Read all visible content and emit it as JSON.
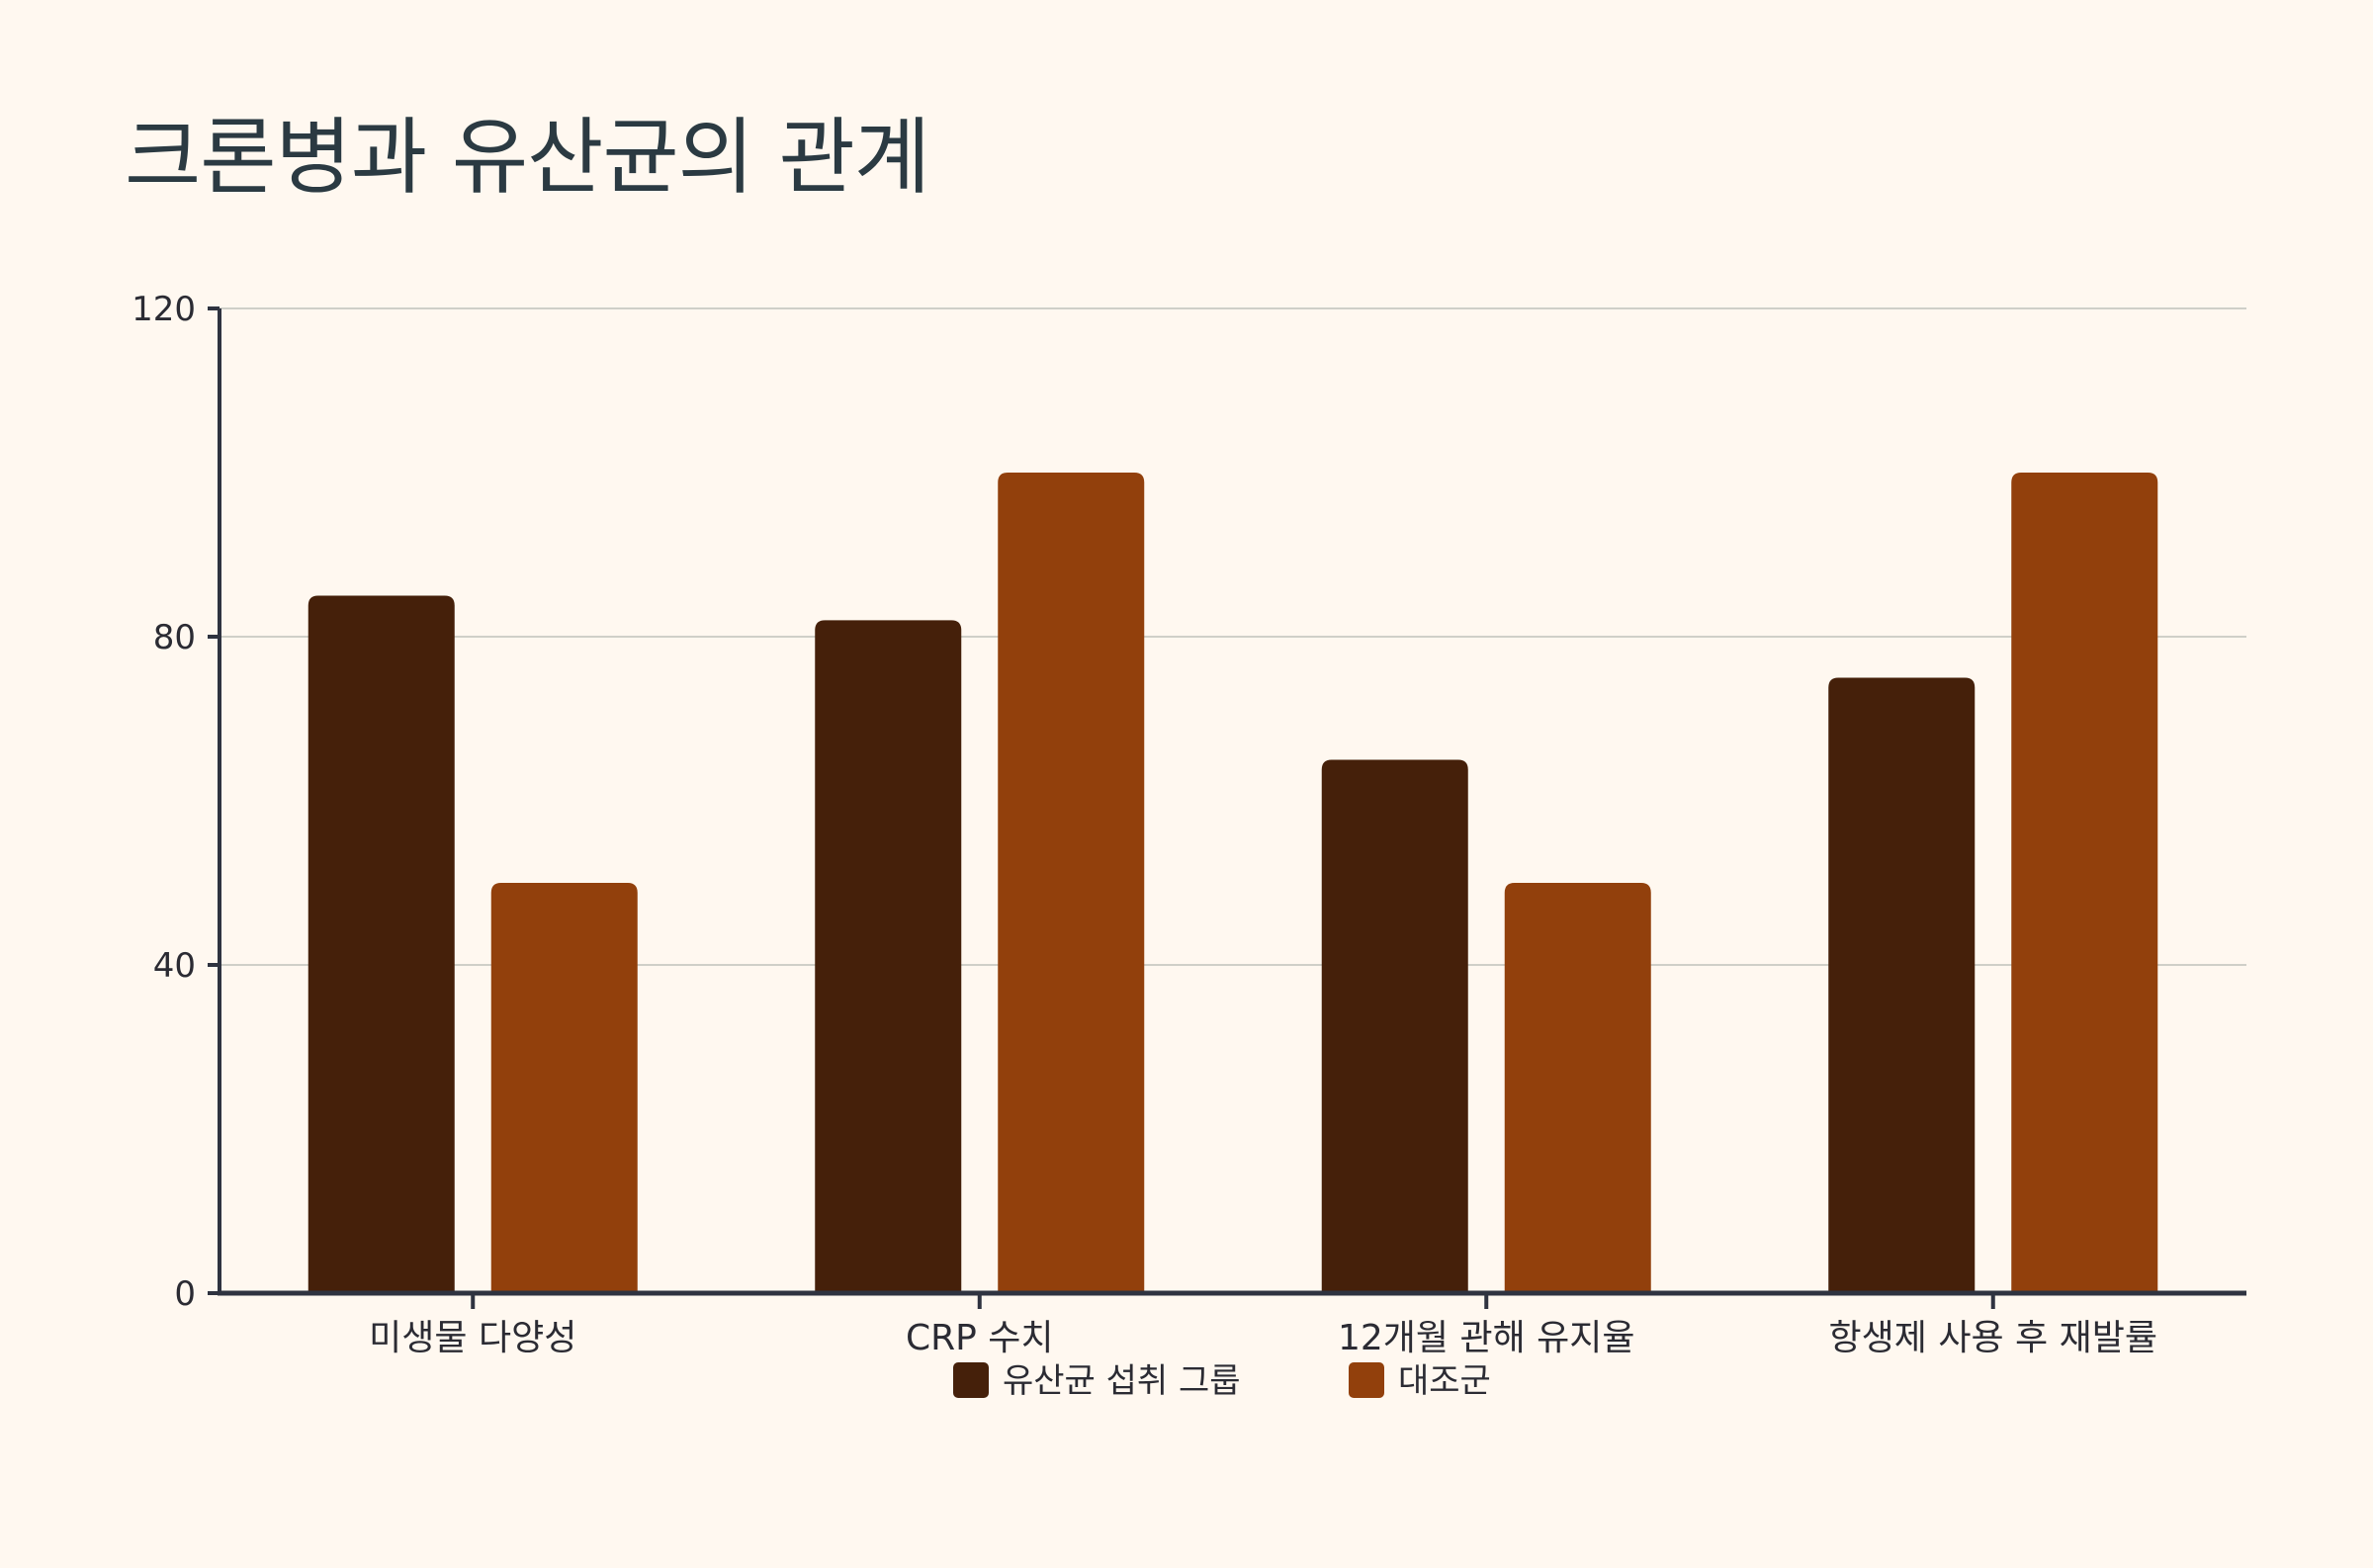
{
  "chart_data": {
    "type": "bar",
    "title": "크론병과 유산균의 관계",
    "xlabel": "",
    "ylabel": "",
    "ylim": [
      0,
      120
    ],
    "yticks": [
      0,
      40,
      80,
      120
    ],
    "grid": true,
    "legend_position": "bottom-center",
    "categories": [
      "미생물 다양성",
      "CRP 수치",
      "12개월 관해 유지율",
      "항생제 사용 후 재발률"
    ],
    "series": [
      {
        "name": "유산균 섭취 그룹",
        "color": "#45200a",
        "values": [
          85,
          82,
          65,
          75
        ]
      },
      {
        "name": "대조군",
        "color": "#92400c",
        "values": [
          50,
          100,
          50,
          100
        ]
      }
    ]
  }
}
